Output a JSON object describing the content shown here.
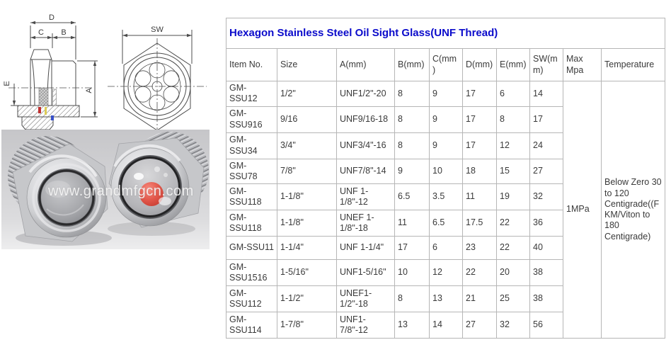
{
  "title": "Hexagon Stainless Steel Oil Sight Glass(UNF Thread)",
  "colors": {
    "title_blue": "#0b0bcb",
    "table_border_gray": "#b6b6b6",
    "red_float_ball": "#d0392e"
  },
  "table": {
    "columns": [
      "Item No.",
      "Size",
      "A(mm)",
      "B(mm)",
      "C(mm)",
      "D(mm)",
      "E(mm)",
      "SW(mm)",
      "Max Mpa",
      "Temperature"
    ],
    "rows": [
      [
        "GM-SSU12",
        "1/2\"",
        "UNF1/2\"-20",
        "8",
        "9",
        "17",
        "6",
        "14"
      ],
      [
        "GM-SSU916",
        "9/16",
        "UNF9/16-18",
        "8",
        "9",
        "17",
        "8",
        "17"
      ],
      [
        "GM-SSU34",
        "3/4\"",
        "UNF3/4\"-16",
        "8",
        "9",
        "17",
        "12",
        "24"
      ],
      [
        "GM-SSU78",
        "7/8\"",
        "UNF7/8\"-14",
        "9",
        "10",
        "18",
        "15",
        "27"
      ],
      [
        "GM-SSU118",
        "1-1/8\"",
        "UNF 1-1/8\"-12",
        "6.5",
        "3.5",
        "11",
        "19",
        "32"
      ],
      [
        "GM-SSU118",
        "1-1/8\"",
        "UNEF 1-1/8\"-18",
        "11",
        "6.5",
        "17.5",
        "22",
        "36"
      ],
      [
        "GM-SSU11",
        "1-1/4\"",
        "UNF 1-1/4\"",
        "17",
        "6",
        "23",
        "22",
        "40"
      ],
      [
        "GM-SSU1516",
        "1-5/16\"",
        "UNF1-5/16\"",
        "10",
        "12",
        "22",
        "20",
        "38"
      ],
      [
        "GM-SSU112",
        "1-1/2\"",
        "UNEF1-1/2\"-18",
        "8",
        "13",
        "21",
        "25",
        "38"
      ],
      [
        "GM-SSU114",
        "1-7/8\"",
        "UNF1-7/8\"-12",
        "13",
        "14",
        "27",
        "32",
        "56"
      ]
    ],
    "max_mpa": "1MPa",
    "temperature": "Below Zero 30 to 120 Centigrade((FKM/Viton to 180 Centigrade)"
  },
  "diagram": {
    "labels": {
      "d": "D",
      "c": "C",
      "b": "B",
      "e": "E",
      "a": "A",
      "sw": "SW"
    }
  },
  "photo": {
    "watermark": "www.grandmfgcn.com"
  }
}
